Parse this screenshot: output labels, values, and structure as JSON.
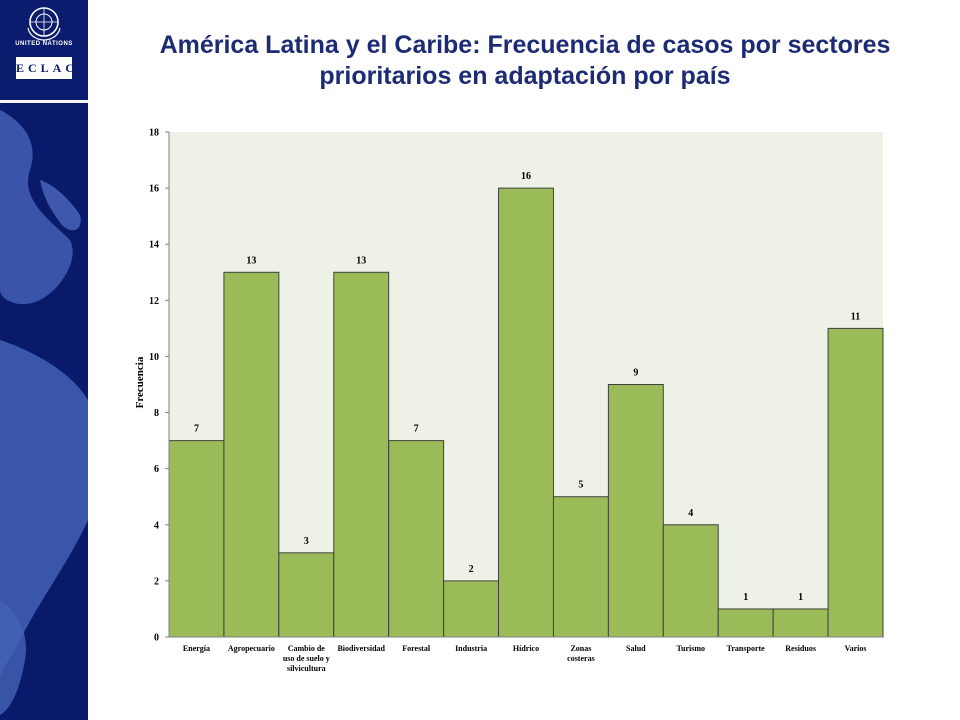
{
  "header": {
    "title": "América Latina y el Caribe: Frecuencia de casos por sectores prioritarios en adaptación por país"
  },
  "logo": {
    "un_text": "UNITED NATIONS",
    "org_text": "ECLAC"
  },
  "colors": {
    "sidebar": "#0a1a6b",
    "bar_fill": "#9bbb59",
    "plot_bg": "#eef2e6",
    "title": "#1d2b74"
  },
  "chart_data": {
    "type": "bar",
    "title": "",
    "xlabel": "",
    "ylabel": "Frecuencia",
    "ylim": [
      0,
      18
    ],
    "yticks": [
      0,
      2,
      4,
      6,
      8,
      10,
      12,
      14,
      16,
      18
    ],
    "grid": false,
    "categories": [
      [
        "Energía"
      ],
      [
        "Agropecuario"
      ],
      [
        "Cambio de",
        "uso de suelo y",
        "silvicultura"
      ],
      [
        "Biodiversidad"
      ],
      [
        "Forestal"
      ],
      [
        "Industria"
      ],
      [
        "Hídrico"
      ],
      [
        "Zonas",
        "costeras"
      ],
      [
        "Salud"
      ],
      [
        "Turismo"
      ],
      [
        "Transporte"
      ],
      [
        "Residuos"
      ],
      [
        "Varios"
      ]
    ],
    "values": [
      7,
      13,
      3,
      13,
      7,
      2,
      16,
      5,
      9,
      4,
      1,
      1,
      11
    ]
  }
}
